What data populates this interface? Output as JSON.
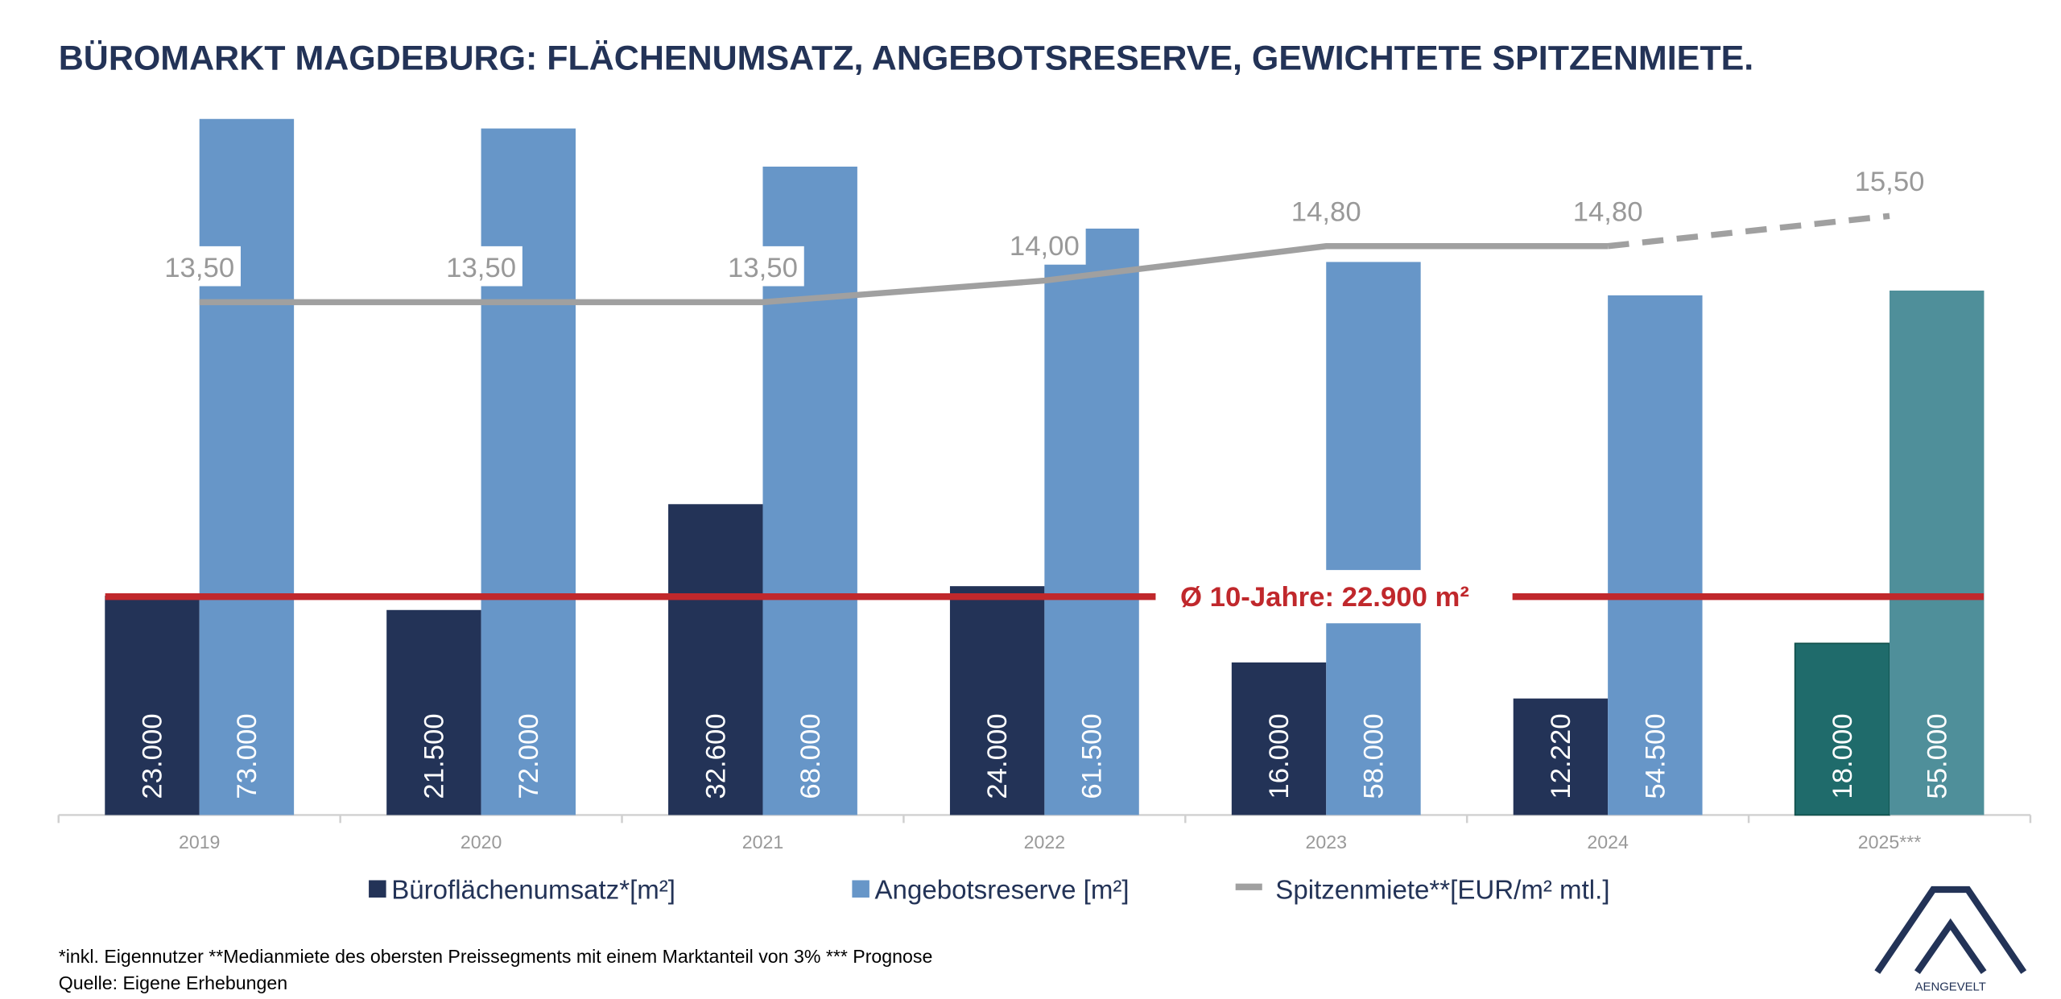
{
  "chart_data": {
    "type": "bar",
    "title": "BÜROMARKT MAGDEBURG: FLÄCHENUMSATZ, ANGEBOTSRESERVE, GEWICHTETE SPITZENMIETE.",
    "categories": [
      "2019",
      "2020",
      "2021",
      "2022",
      "2023",
      "2024",
      "2025***"
    ],
    "forecast_from": 6,
    "series": [
      {
        "name": "Büroflächenumsatz*[m²]",
        "type": "bar",
        "color": "#233357",
        "forecast_color": "#1f6b6b",
        "values": [
          23000,
          21500,
          32600,
          24000,
          16000,
          12220,
          18000
        ],
        "value_labels": [
          "23.000",
          "21.500",
          "32.600",
          "24.000",
          "16.000",
          "12.220",
          "18.000"
        ]
      },
      {
        "name": "Angebotsreserve [m²]",
        "type": "bar",
        "color": "#6796c8",
        "forecast_color": "#4f8f9a",
        "values": [
          73000,
          72000,
          68000,
          61500,
          58000,
          54500,
          55000
        ],
        "value_labels": [
          "73.000",
          "72.000",
          "68.000",
          "61.500",
          "58.000",
          "54.500",
          "55.000"
        ]
      },
      {
        "name": "Spitzenmiete**[EUR/m² mtl.]",
        "type": "line",
        "axis": "y2",
        "color": "#a0a0a0",
        "values": [
          13.5,
          13.5,
          13.5,
          14.0,
          14.8,
          14.8,
          15.5
        ],
        "value_labels": [
          "13,50",
          "13,50",
          "13,50",
          "14,00",
          "14,80",
          "14,80",
          "15,50"
        ]
      }
    ],
    "average": {
      "value": 22900,
      "label": "Ø 10-Jahre: 22.900 m²",
      "color": "#c0282c"
    },
    "ylim": [
      0,
      80000
    ],
    "y2lim": [
      1.6,
      19.3
    ],
    "footnote": "*inkl. Eigennutzer **Medianmiete des obersten Preissegments mit einem Marktanteil von 3% *** Prognose",
    "source": "Quelle: Eigene Erhebungen",
    "logo": "AENGEVELT"
  }
}
